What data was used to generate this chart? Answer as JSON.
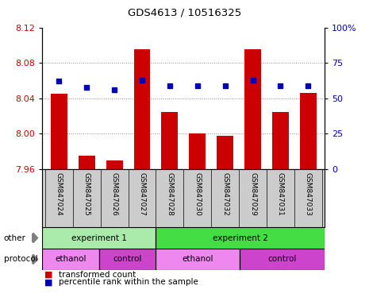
{
  "title": "GDS4613 / 10516325",
  "samples": [
    "GSM847024",
    "GSM847025",
    "GSM847026",
    "GSM847027",
    "GSM847028",
    "GSM847030",
    "GSM847032",
    "GSM847029",
    "GSM847031",
    "GSM847033"
  ],
  "transformed_count": [
    8.045,
    7.975,
    7.97,
    8.095,
    8.025,
    8.0,
    7.998,
    8.095,
    8.025,
    8.046
  ],
  "percentile_rank": [
    62,
    58,
    56,
    63,
    59,
    59,
    59,
    63,
    59,
    59
  ],
  "ylim_left": [
    7.96,
    8.12
  ],
  "ylim_right": [
    0,
    100
  ],
  "yticks_left": [
    7.96,
    8.0,
    8.04,
    8.08,
    8.12
  ],
  "yticks_right": [
    0,
    25,
    50,
    75,
    100
  ],
  "bar_color": "#cc0000",
  "dot_color": "#0000bb",
  "bar_baseline": 7.96,
  "experiment_groups": [
    {
      "label": "experiment 1",
      "start": 0,
      "end": 4,
      "color": "#aaeaaa"
    },
    {
      "label": "experiment 2",
      "start": 4,
      "end": 10,
      "color": "#44dd44"
    }
  ],
  "protocol_groups": [
    {
      "label": "ethanol",
      "start": 0,
      "end": 2,
      "color": "#ee88ee"
    },
    {
      "label": "control",
      "start": 2,
      "end": 4,
      "color": "#cc44cc"
    },
    {
      "label": "ethanol",
      "start": 4,
      "end": 7,
      "color": "#ee88ee"
    },
    {
      "label": "control",
      "start": 7,
      "end": 10,
      "color": "#cc44cc"
    }
  ],
  "grid_color": "#888888",
  "grid_ticks": [
    8.0,
    8.04,
    8.08
  ],
  "tick_label_color_left": "#cc0000",
  "tick_label_color_right": "#0000bb",
  "sample_area_color": "#cccccc",
  "bar_width": 0.6,
  "dot_size": 5,
  "legend_items": [
    {
      "color": "#cc0000",
      "marker": "s",
      "label": "transformed count"
    },
    {
      "color": "#0000bb",
      "marker": "s",
      "label": "percentile rank within the sample"
    }
  ]
}
